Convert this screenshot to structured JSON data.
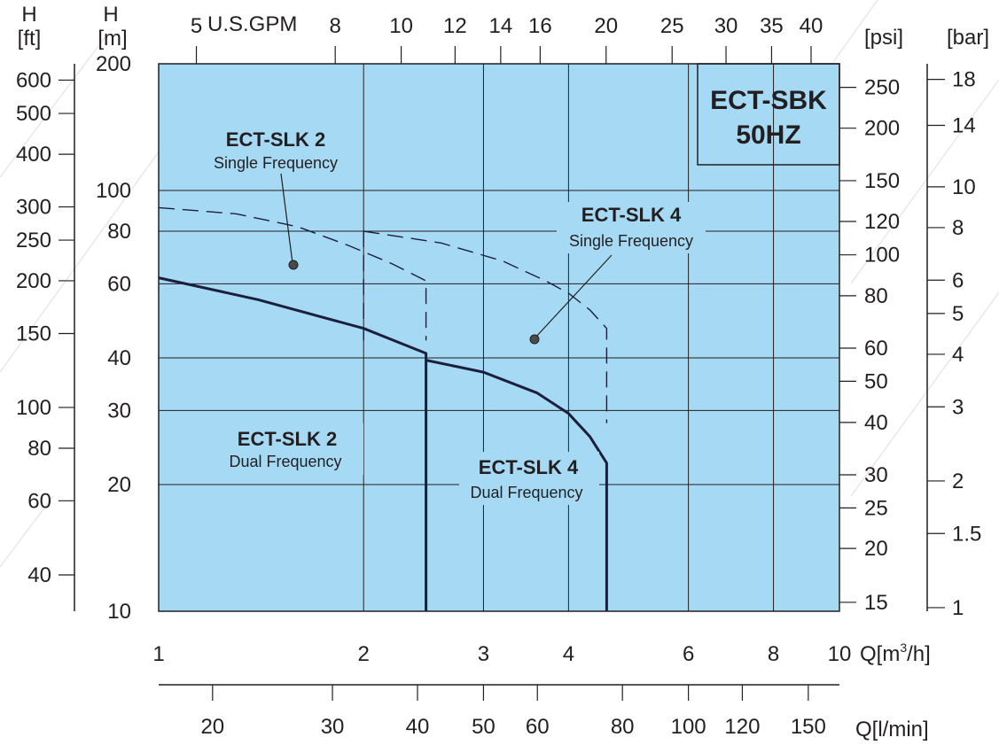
{
  "chart_data": {
    "type": "line",
    "x_scale": "log",
    "y_scale": "log",
    "xlabel": "Q[m³/h]",
    "ylabel": "H [m]",
    "xlim": [
      1,
      10
    ],
    "ylim": [
      10,
      200
    ],
    "grid": true,
    "colors": {
      "plot_bg": "#a6daf4",
      "grid": "#231f20",
      "curve": "#1b1f3b"
    },
    "x_ticks": [
      1,
      2,
      3,
      4,
      6,
      8,
      10
    ],
    "y_ticks": [
      10,
      20,
      30,
      40,
      60,
      80,
      100,
      200
    ],
    "x_label_unit": "Q[m",
    "x_label_sup": "3",
    "x_label_tail": "/h]",
    "top_axis": {
      "label": "U.S.GPM",
      "ticks": [
        {
          "text": "5",
          "q_m3h": 1.136
        },
        {
          "text": "8",
          "q_m3h": 1.817
        },
        {
          "text": "10",
          "q_m3h": 2.271
        },
        {
          "text": "12",
          "q_m3h": 2.725
        },
        {
          "text": "14",
          "q_m3h": 3.18
        },
        {
          "text": "16",
          "q_m3h": 3.634
        },
        {
          "text": "20",
          "q_m3h": 4.542
        },
        {
          "text": "25",
          "q_m3h": 5.678
        },
        {
          "text": "30",
          "q_m3h": 6.814
        },
        {
          "text": "35",
          "q_m3h": 7.949
        },
        {
          "text": "40",
          "q_m3h": 9.085
        }
      ]
    },
    "bottom_axis": {
      "label": "Q[l/min]",
      "ticks": [
        {
          "text": "20",
          "q_m3h": 1.2
        },
        {
          "text": "30",
          "q_m3h": 1.8
        },
        {
          "text": "40",
          "q_m3h": 2.4
        },
        {
          "text": "50",
          "q_m3h": 3.0
        },
        {
          "text": "60",
          "q_m3h": 3.6
        },
        {
          "text": "80",
          "q_m3h": 4.8
        },
        {
          "text": "100",
          "q_m3h": 6.0
        },
        {
          "text": "120",
          "q_m3h": 7.2
        },
        {
          "text": "150",
          "q_m3h": 9.0
        }
      ]
    },
    "ft_axis": {
      "label_top": "H",
      "label_bottom": "[ft]",
      "ticks": [
        {
          "text": "600",
          "h_m": 182.9
        },
        {
          "text": "500",
          "h_m": 152.4
        },
        {
          "text": "400",
          "h_m": 121.9
        },
        {
          "text": "300",
          "h_m": 91.4
        },
        {
          "text": "250",
          "h_m": 76.2
        },
        {
          "text": "200",
          "h_m": 61.0
        },
        {
          "text": "150",
          "h_m": 45.7
        },
        {
          "text": "100",
          "h_m": 30.5
        },
        {
          "text": "80",
          "h_m": 24.4
        },
        {
          "text": "60",
          "h_m": 18.3
        },
        {
          "text": "40",
          "h_m": 12.2
        }
      ]
    },
    "m_axis": {
      "label_top": "H",
      "label_bottom": "[m]"
    },
    "psi_axis": {
      "label": "[psi]",
      "ticks": [
        {
          "text": "250",
          "h_m": 175.8
        },
        {
          "text": "200",
          "h_m": 140.6
        },
        {
          "text": "150",
          "h_m": 105.5
        },
        {
          "text": "120",
          "h_m": 84.4
        },
        {
          "text": "100",
          "h_m": 70.3
        },
        {
          "text": "80",
          "h_m": 56.2
        },
        {
          "text": "60",
          "h_m": 42.2
        },
        {
          "text": "50",
          "h_m": 35.2
        },
        {
          "text": "40",
          "h_m": 28.1
        },
        {
          "text": "30",
          "h_m": 21.1
        },
        {
          "text": "25",
          "h_m": 17.6
        },
        {
          "text": "20",
          "h_m": 14.1
        },
        {
          "text": "15",
          "h_m": 10.5
        }
      ]
    },
    "bar_axis": {
      "label": "[bar]",
      "ticks": [
        {
          "text": "18",
          "h_m": 183.6
        },
        {
          "text": "14",
          "h_m": 142.8
        },
        {
          "text": "10",
          "h_m": 102.0
        },
        {
          "text": "8",
          "h_m": 81.6
        },
        {
          "text": "6",
          "h_m": 61.2
        },
        {
          "text": "5",
          "h_m": 51.0
        },
        {
          "text": "4",
          "h_m": 40.8
        },
        {
          "text": "3",
          "h_m": 30.6
        },
        {
          "text": "2",
          "h_m": 20.4
        },
        {
          "text": "1.5",
          "h_m": 15.3
        },
        {
          "text": "1",
          "h_m": 10.2
        }
      ]
    },
    "series": [
      {
        "name": "ECT-SLK 2 Dual Frequency",
        "style": "solid",
        "points": [
          [
            1.0,
            62
          ],
          [
            1.4,
            55
          ],
          [
            2.0,
            47
          ],
          [
            2.47,
            41
          ],
          [
            2.47,
            10
          ]
        ]
      },
      {
        "name": "ECT-SLK 4 Dual Frequency",
        "style": "solid",
        "points": [
          [
            2.47,
            39.5
          ],
          [
            3.0,
            37
          ],
          [
            3.6,
            33
          ],
          [
            4.0,
            29.5
          ],
          [
            4.3,
            26
          ],
          [
            4.55,
            22.5
          ],
          [
            4.55,
            10
          ]
        ]
      },
      {
        "name": "ECT-SLK 2 Single Frequency",
        "style": "dashed",
        "points": [
          [
            1.0,
            91
          ],
          [
            1.3,
            88
          ],
          [
            1.6,
            82
          ],
          [
            1.9,
            74
          ],
          [
            2.2,
            67
          ],
          [
            2.47,
            61
          ],
          [
            2.47,
            44
          ]
        ]
      },
      {
        "name": "ECT-SLK 4 Single Frequency",
        "style": "dashed",
        "points": [
          [
            2.0,
            80
          ],
          [
            2.0,
            44
          ]
        ]
      },
      {
        "name": "ECT-SLK 4 Single Frequency (upper)",
        "style": "dashed",
        "points": [
          [
            2.0,
            80
          ],
          [
            2.6,
            75
          ],
          [
            3.2,
            68
          ],
          [
            3.7,
            61
          ],
          [
            4.0,
            57
          ],
          [
            4.3,
            52
          ],
          [
            4.55,
            47
          ],
          [
            4.55,
            28
          ]
        ]
      }
    ],
    "annotations": [
      {
        "title": "ECT-SLK 2",
        "subtitle": "Single Frequency",
        "pointer_to": [
          1.6,
          65
        ]
      },
      {
        "title": "ECT-SLK 4",
        "subtitle": "Single Frequency",
        "pointer_to": [
          3.5,
          46
        ]
      },
      {
        "title": "ECT-SLK 2",
        "subtitle": "Dual Frequency"
      },
      {
        "title": "ECT-SLK 4",
        "subtitle": "Dual Frequency"
      }
    ],
    "title_box": {
      "line1": "ECT-SBK",
      "line2": "50HZ"
    }
  }
}
